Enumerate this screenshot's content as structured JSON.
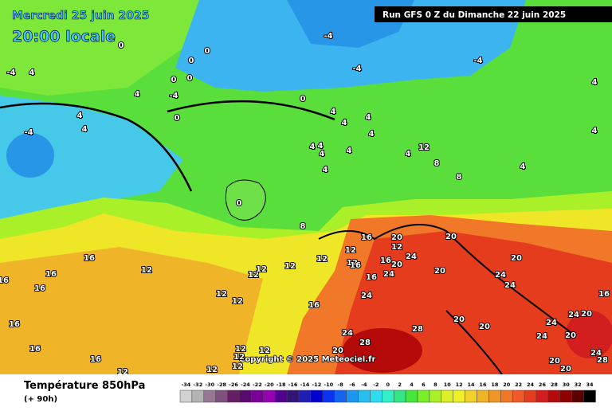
{
  "header": {
    "date": "Mercredi 25 juin 2025",
    "time": "20:00 locale",
    "run": "Run GFS 0 Z du Dimanche 22 juin 2025",
    "copyright": "Copyright © 2025 Meteociel.fr"
  },
  "map": {
    "contour_labels": [
      "0",
      "-4",
      "0",
      "0",
      "-4",
      "4",
      "-4",
      "-4",
      "4",
      "0",
      "0",
      "4",
      "-4",
      "0",
      "0",
      "4",
      "4",
      "-4",
      "4",
      "4",
      "4",
      "4",
      "4",
      "4",
      "4",
      "4",
      "12",
      "4",
      "8",
      "8",
      "4",
      "4",
      "4",
      "0",
      "8",
      "16",
      "16",
      "16",
      "16",
      "12",
      "12",
      "12",
      "12",
      "12",
      "12",
      "12",
      "16",
      "20",
      "12",
      "16",
      "20",
      "24",
      "16",
      "16",
      "24",
      "20",
      "20",
      "20",
      "24",
      "24",
      "12",
      "12",
      "16",
      "24",
      "16",
      "20",
      "20",
      "24",
      "24",
      "20",
      "16",
      "28",
      "24",
      "28",
      "20",
      "24",
      "16",
      "12",
      "20",
      "24",
      "28",
      "20",
      "20",
      "16",
      "12",
      "12",
      "12",
      "12",
      "12"
    ]
  },
  "legend": {
    "title": "Température 850hPa",
    "subtitle": "(+ 90h)",
    "ticks": [
      -34,
      -32,
      -30,
      -28,
      -26,
      -24,
      -22,
      -20,
      -18,
      -16,
      -14,
      -12,
      -10,
      -8,
      -6,
      -4,
      -2,
      0,
      2,
      4,
      6,
      8,
      10,
      12,
      14,
      16,
      18,
      20,
      22,
      24,
      26,
      28,
      30,
      32,
      34
    ],
    "colors": [
      "#d2d2d2",
      "#b4b4b4",
      "#967896",
      "#7d507d",
      "#641e64",
      "#5a0a6e",
      "#780096",
      "#9600b4",
      "#50008c",
      "#321478",
      "#1e1eb4",
      "#0000d2",
      "#0a32f0",
      "#1464f0",
      "#1e96f0",
      "#28bef0",
      "#32dcf0",
      "#32f0c8",
      "#32e682",
      "#46e63c",
      "#78f028",
      "#aaf028",
      "#dcf028",
      "#f0f028",
      "#f0d228",
      "#f0b428",
      "#f09628",
      "#f07828",
      "#f05a28",
      "#e63c1e",
      "#d21e1e",
      "#b40a0a",
      "#8c0000",
      "#5a0000",
      "#000000"
    ]
  }
}
